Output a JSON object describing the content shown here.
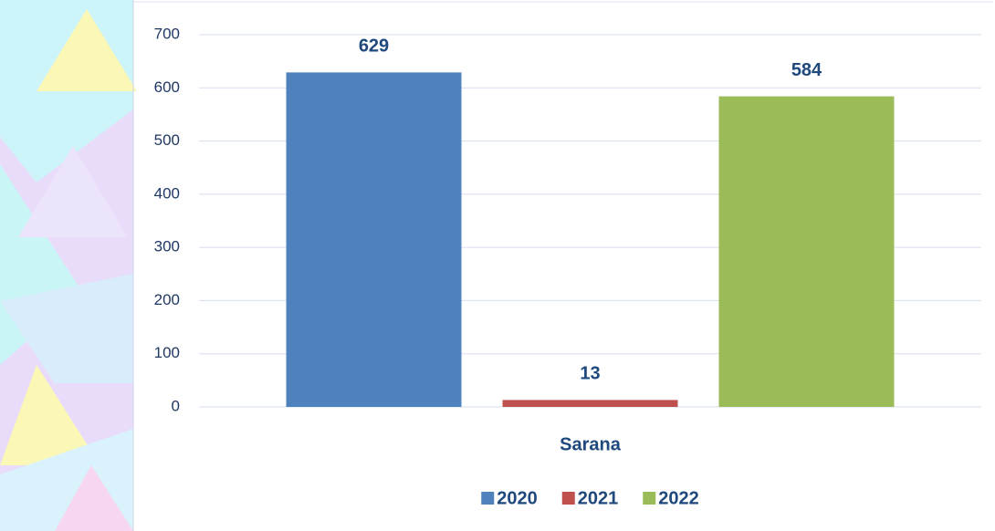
{
  "chart_data": {
    "type": "bar",
    "categories": [
      "Sarana"
    ],
    "series": [
      {
        "name": "2020",
        "color": "#4f81bd",
        "values": [
          629
        ]
      },
      {
        "name": "2021",
        "color": "#c0504d",
        "values": [
          13
        ]
      },
      {
        "name": "2022",
        "color": "#9bbb59",
        "values": [
          584
        ]
      }
    ],
    "ylim": [
      0,
      700
    ],
    "yticks": [
      0,
      100,
      200,
      300,
      400,
      500,
      600,
      700
    ],
    "grid": true,
    "legend": "bottom"
  }
}
